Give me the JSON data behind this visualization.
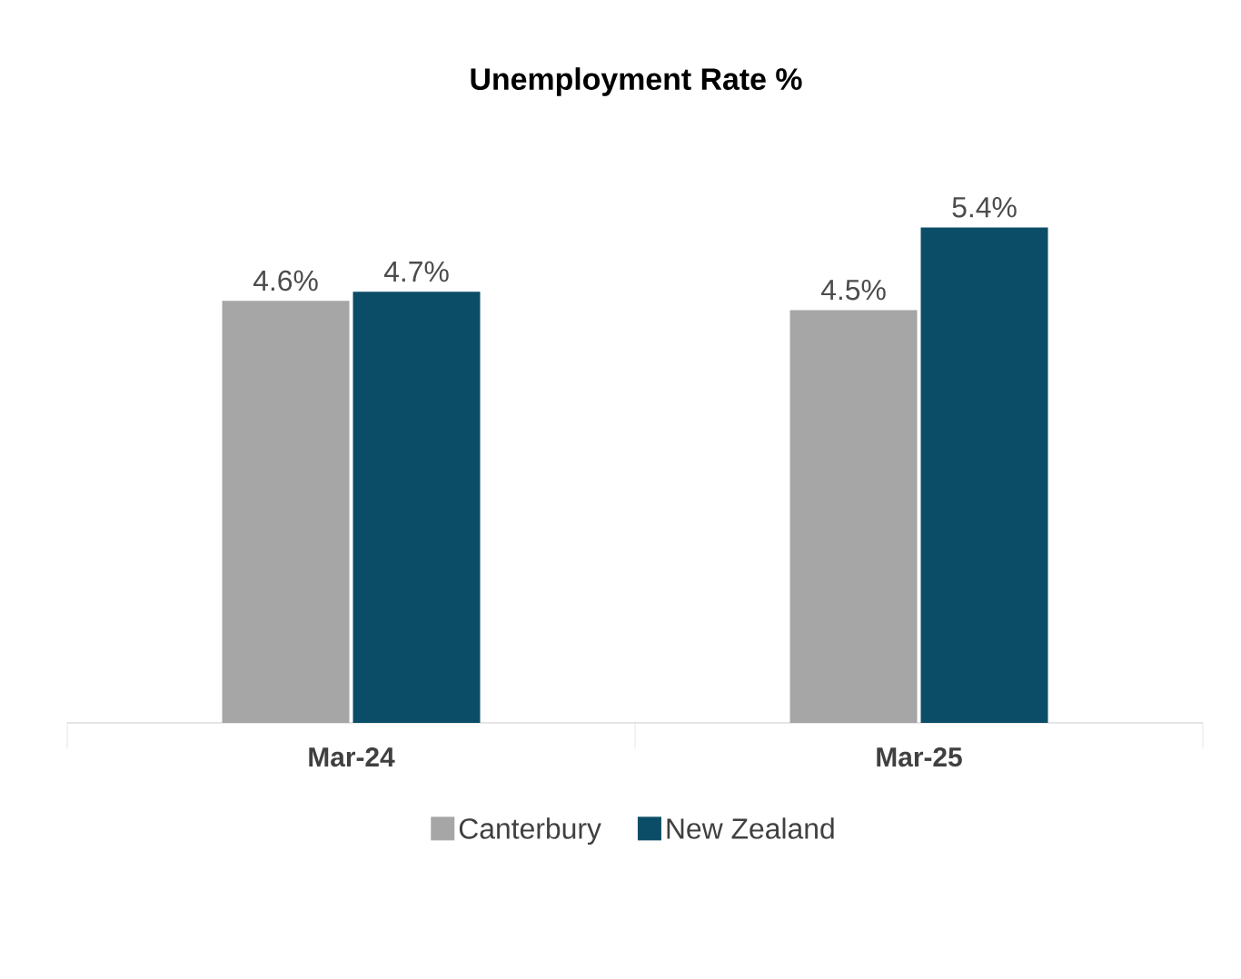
{
  "chart_data": {
    "type": "bar",
    "title": "Unemployment Rate %",
    "categories": [
      "Mar-24",
      "Mar-25"
    ],
    "series": [
      {
        "name": "Canterbury",
        "color": "#a6a6a6",
        "values": [
          4.6,
          4.5
        ],
        "value_labels": [
          "4.6%",
          "4.5%"
        ]
      },
      {
        "name": "New Zealand",
        "color": "#0b4d66",
        "values": [
          4.7,
          5.4
        ],
        "value_labels": [
          "4.7%",
          "5.4%"
        ]
      }
    ],
    "tick_labels": "x",
    "grid": false,
    "legend": "bottom"
  }
}
